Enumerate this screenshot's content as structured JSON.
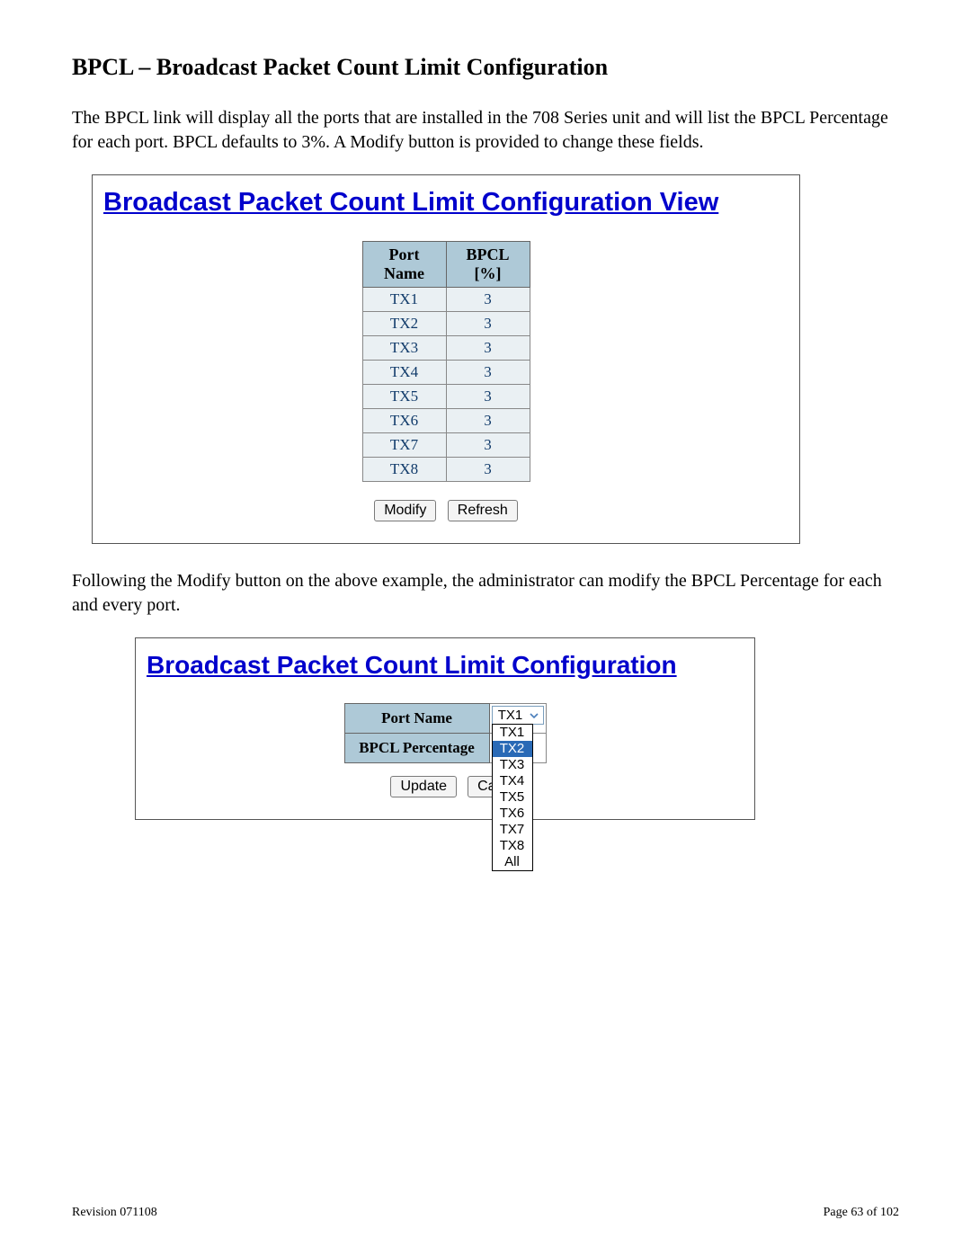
{
  "doc": {
    "section_title": "BPCL – Broadcast Packet Count Limit Configuration",
    "intro": "The BPCL link will display all the ports that are installed in the 708 Series unit and will list the BPCL Percentage for each port.  BPCL defaults to 3%. A Modify button is provided to change these fields.",
    "mid_text": "Following the Modify button on the above example, the administrator can modify the BPCL Percentage for each and every port.",
    "footer_left": "Revision 071108",
    "footer_right": "Page 63 of 102"
  },
  "view_panel": {
    "title": "Broadcast Packet Count Limit Configuration View",
    "columns": {
      "c0": "Port Name",
      "c1": "BPCL [%]"
    },
    "rows": [
      {
        "port": "TX1",
        "bpcl": "3"
      },
      {
        "port": "TX2",
        "bpcl": "3"
      },
      {
        "port": "TX3",
        "bpcl": "3"
      },
      {
        "port": "TX4",
        "bpcl": "3"
      },
      {
        "port": "TX5",
        "bpcl": "3"
      },
      {
        "port": "TX6",
        "bpcl": "3"
      },
      {
        "port": "TX7",
        "bpcl": "3"
      },
      {
        "port": "TX8",
        "bpcl": "3"
      }
    ],
    "buttons": {
      "modify": "Modify",
      "refresh": "Refresh"
    }
  },
  "edit_panel": {
    "title": "Broadcast Packet Count Limit Configuration",
    "labels": {
      "port_name": "Port Name",
      "bpcl_pct": "BPCL Percentage"
    },
    "select_value": "TX1",
    "dropdown_options": [
      "TX1",
      "TX2",
      "TX3",
      "TX4",
      "TX5",
      "TX6",
      "TX7",
      "TX8",
      "All"
    ],
    "dropdown_highlight_index": 1,
    "buttons": {
      "update": "Update",
      "cancel_partial": "Ca"
    }
  },
  "style": {
    "heading_link_color": "#0000cc",
    "header_cell_bg": "#aec9d7",
    "data_cell_bg": "#eaf0f3",
    "data_cell_text": "#103a6a",
    "dropdown_highlight_bg": "#2a6ab6",
    "dropdown_highlight_text": "#ffffff"
  }
}
